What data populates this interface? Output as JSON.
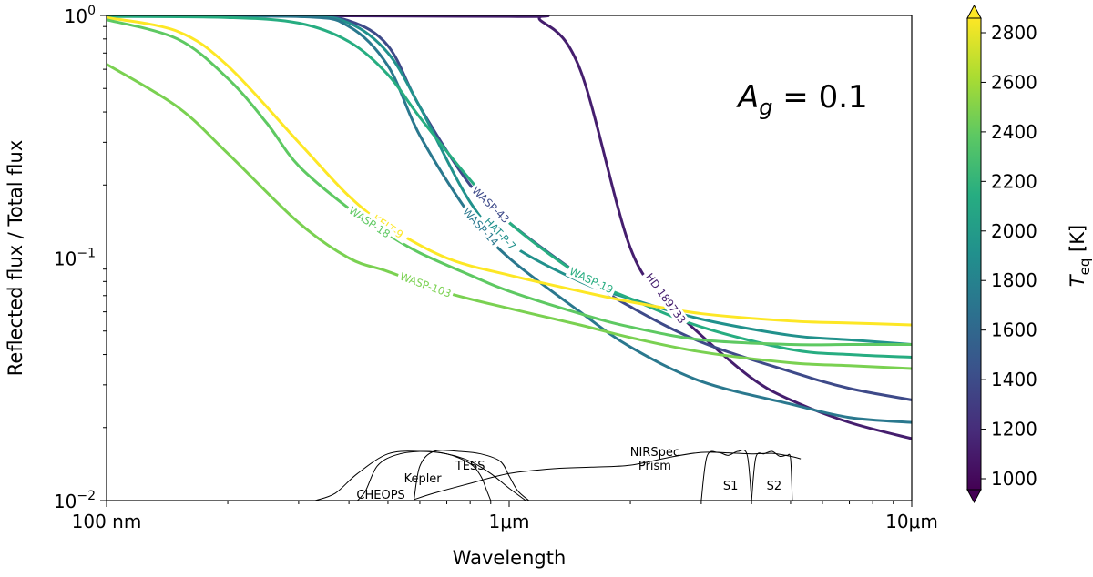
{
  "chart_data": {
    "type": "line",
    "xlabel": "Wavelength",
    "ylabel": "Reflected flux / Total flux",
    "xscale": "log",
    "yscale": "log",
    "xlim": [
      0.1,
      10
    ],
    "ylim": [
      0.01,
      1
    ],
    "xticks": [
      {
        "value": 0.1,
        "label": "100 nm"
      },
      {
        "value": 1,
        "label": "1μm"
      },
      {
        "value": 10,
        "label": "10μm"
      }
    ],
    "yticks": [
      {
        "value": 0.01,
        "base": "10",
        "exp": "−2"
      },
      {
        "value": 0.1,
        "base": "10",
        "exp": "−1"
      },
      {
        "value": 1,
        "base": "10",
        "exp": "0"
      }
    ],
    "annotation": {
      "symbol": "A",
      "subscript": "g",
      "text": " = 0.1"
    },
    "colorbar": {
      "label": "T",
      "label_sub": "eq",
      "label_unit": " [K]",
      "min": 1000,
      "max": 2800,
      "ticks": [
        "1000",
        "1200",
        "1400",
        "1600",
        "1800",
        "2000",
        "2200",
        "2400",
        "2600",
        "2800"
      ],
      "colors": [
        "#440154",
        "#472c7a",
        "#3b518b",
        "#2c718e",
        "#21908d",
        "#27ad81",
        "#5cc863",
        "#aadc32",
        "#fde725"
      ]
    },
    "series": [
      {
        "name": "HD 189733",
        "color": "#451e6e",
        "x": [
          0.1,
          1.0,
          1.2,
          1.5,
          2.0,
          2.5,
          3.0,
          4.0,
          5.0,
          7.0,
          10.0
        ],
        "y": [
          1.0,
          0.99,
          0.95,
          0.6,
          0.11,
          0.065,
          0.048,
          0.032,
          0.026,
          0.021,
          0.018
        ]
      },
      {
        "name": "WASP-43",
        "color": "#3e4a89",
        "x": [
          0.1,
          0.3,
          0.4,
          0.5,
          0.6,
          0.8,
          1.0,
          1.5,
          2.0,
          3.0,
          5.0,
          7.0,
          10.0
        ],
        "y": [
          1.0,
          0.99,
          0.95,
          0.75,
          0.42,
          0.2,
          0.14,
          0.085,
          0.063,
          0.045,
          0.034,
          0.029,
          0.026
        ]
      },
      {
        "name": "HAT-P-7",
        "color": "#21918c",
        "x": [
          0.1,
          0.3,
          0.4,
          0.5,
          0.6,
          0.8,
          1.0,
          1.5,
          2.0,
          3.0,
          5.0,
          7.0,
          10.0
        ],
        "y": [
          1.0,
          0.99,
          0.93,
          0.7,
          0.42,
          0.17,
          0.115,
          0.08,
          0.068,
          0.056,
          0.048,
          0.046,
          0.044
        ]
      },
      {
        "name": "WASP-14",
        "color": "#2a788e",
        "x": [
          0.1,
          0.3,
          0.4,
          0.5,
          0.6,
          0.8,
          1.0,
          1.5,
          2.0,
          3.0,
          5.0,
          7.0,
          10.0
        ],
        "y": [
          1.0,
          0.99,
          0.9,
          0.62,
          0.32,
          0.15,
          0.1,
          0.06,
          0.043,
          0.031,
          0.025,
          0.022,
          0.021
        ]
      },
      {
        "name": "WASP-19",
        "color": "#27ad81",
        "x": [
          0.1,
          0.2,
          0.3,
          0.4,
          0.5,
          0.6,
          0.8,
          1.0,
          1.5,
          2.0,
          3.0,
          5.0,
          7.0,
          10.0
        ],
        "y": [
          0.99,
          0.98,
          0.93,
          0.78,
          0.57,
          0.38,
          0.21,
          0.14,
          0.085,
          0.068,
          0.052,
          0.042,
          0.04,
          0.039
        ]
      },
      {
        "name": "KELT-9",
        "color": "#fde725",
        "x": [
          0.1,
          0.15,
          0.2,
          0.3,
          0.4,
          0.5,
          0.7,
          1.0,
          1.5,
          2.0,
          3.0,
          5.0,
          7.0,
          10.0
        ],
        "y": [
          0.98,
          0.86,
          0.62,
          0.3,
          0.18,
          0.135,
          0.1,
          0.085,
          0.073,
          0.066,
          0.059,
          0.055,
          0.054,
          0.053
        ]
      },
      {
        "name": "WASP-18",
        "color": "#5ec962",
        "x": [
          0.1,
          0.15,
          0.2,
          0.25,
          0.3,
          0.4,
          0.5,
          0.6,
          0.8,
          1.0,
          1.5,
          2.0,
          3.0,
          5.0,
          7.0,
          10.0
        ],
        "y": [
          0.96,
          0.8,
          0.55,
          0.36,
          0.24,
          0.16,
          0.125,
          0.105,
          0.085,
          0.073,
          0.059,
          0.052,
          0.046,
          0.044,
          0.044,
          0.044
        ]
      },
      {
        "name": "WASP-103",
        "color": "#7ad151",
        "x": [
          0.1,
          0.15,
          0.2,
          0.3,
          0.4,
          0.5,
          0.7,
          1.0,
          1.5,
          2.0,
          3.0,
          5.0,
          7.0,
          10.0
        ],
        "y": [
          0.63,
          0.42,
          0.27,
          0.14,
          0.1,
          0.088,
          0.072,
          0.062,
          0.053,
          0.047,
          0.041,
          0.037,
          0.036,
          0.035
        ]
      }
    ],
    "bands": [
      {
        "name": "CHEOPS",
        "x": [
          0.33,
          0.37,
          0.42,
          0.5,
          0.6,
          0.7,
          0.8,
          0.9,
          1.0,
          1.1
        ],
        "y": [
          0,
          0.15,
          0.55,
          0.95,
          1.0,
          0.95,
          0.8,
          0.55,
          0.25,
          0
        ]
      },
      {
        "name": "Kepler",
        "x": [
          0.42,
          0.44,
          0.47,
          0.52,
          0.6,
          0.7,
          0.8,
          0.85,
          0.88,
          0.9
        ],
        "y": [
          0,
          0.2,
          0.7,
          0.92,
          1.0,
          0.95,
          0.75,
          0.5,
          0.2,
          0
        ]
      },
      {
        "name": "TESS",
        "x": [
          0.58,
          0.6,
          0.65,
          0.75,
          0.85,
          0.95,
          1.0,
          1.05,
          1.12
        ],
        "y": [
          0,
          0.7,
          1.0,
          1.0,
          0.95,
          0.8,
          0.5,
          0.2,
          0
        ]
      },
      {
        "name": "NIRSpec\nPrism",
        "x": [
          0.58,
          0.65,
          0.8,
          1.0,
          1.3,
          1.6,
          2.0,
          2.5,
          3.0,
          3.5,
          4.0,
          4.5,
          5.0,
          5.3
        ],
        "y": [
          0.02,
          0.15,
          0.35,
          0.55,
          0.65,
          0.68,
          0.72,
          0.88,
          0.98,
          0.97,
          0.95,
          0.96,
          0.9,
          0.85
        ]
      },
      {
        "name": "S1",
        "x": [
          3.0,
          3.1,
          3.3,
          3.5,
          3.7,
          3.9,
          4.0
        ],
        "y": [
          0,
          0.9,
          0.98,
          0.92,
          1.0,
          0.93,
          0
        ]
      },
      {
        "name": "S2",
        "x": [
          4.0,
          4.1,
          4.3,
          4.5,
          4.7,
          4.9,
          5.0,
          5.05
        ],
        "y": [
          0,
          0.88,
          0.95,
          1.0,
          0.9,
          0.92,
          0.85,
          0
        ]
      }
    ]
  }
}
